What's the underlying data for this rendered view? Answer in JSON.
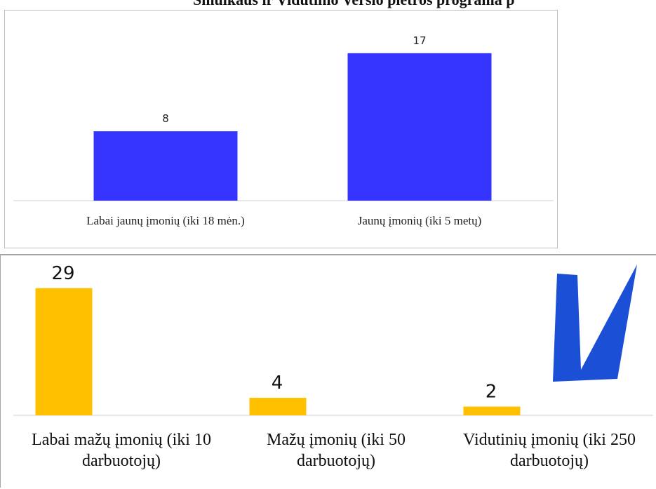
{
  "page": {
    "title": "Smulkaus ir Vidutinio Verslo plėtros programa p"
  },
  "chart_data": [
    {
      "type": "bar",
      "categories": [
        "Labai jaunų įmonių (iki 18 mėn.)",
        "Jaunų įmonių (iki 5 metų)"
      ],
      "values": [
        8,
        17
      ],
      "data_labels": [
        "8",
        "17"
      ],
      "ylim": [
        0,
        18.2
      ],
      "bar_color": "#3535ff",
      "grid": false,
      "legend": "none"
    },
    {
      "type": "bar",
      "categories": [
        "Labai mažų įmonių (iki 10 darbuotojų)",
        "Mažų įmonių (iki 50 darbuotojų)",
        "Vidutinių įmonių (iki 250 darbuotojų)"
      ],
      "category_lines": [
        [
          "Labai mažų įmonių (iki 10",
          "darbuotojų)"
        ],
        [
          "Mažų įmonių (iki 50",
          "darbuotojų)"
        ],
        [
          "Vidutinių įmonių (iki 250",
          "darbuotojų)"
        ]
      ],
      "values": [
        29,
        4,
        2
      ],
      "data_labels": [
        "29",
        "4",
        "2"
      ],
      "ylim": [
        0,
        32
      ],
      "bar_color": "#ffc000",
      "grid": false,
      "legend": "none"
    }
  ],
  "logo": {
    "icon": "v-logo-icon",
    "color": "#1a4fd6"
  }
}
